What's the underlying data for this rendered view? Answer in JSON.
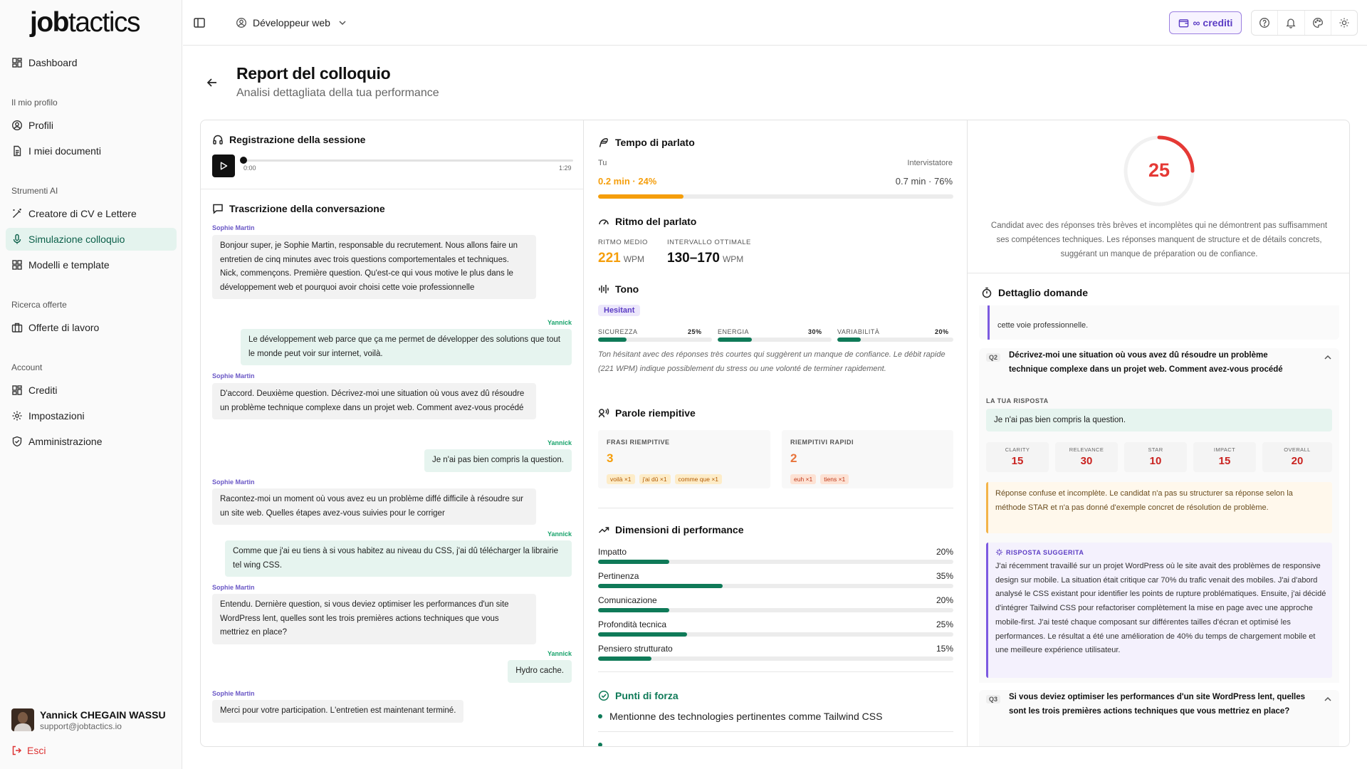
{
  "app": {
    "logo_bold": "job",
    "logo_rest": "tactics"
  },
  "sidebar": {
    "dashboard": "Dashboard",
    "section_profile": "Il mio profilo",
    "profiles": "Profili",
    "documents": "I miei documenti",
    "section_ai": "Strumenti AI",
    "cv_creator": "Creatore di CV e Lettere",
    "interview_sim": "Simulazione colloquio",
    "templates": "Modelli e template",
    "section_jobs": "Ricerca offerte",
    "job_offers": "Offerte di lavoro",
    "section_account": "Account",
    "credits": "Crediti",
    "settings": "Impostazioni",
    "admin": "Amministrazione",
    "user_name": "Yannick CHEGAIN WASSU",
    "user_email": "support@jobtactics.io",
    "logout": "Esci"
  },
  "topbar": {
    "role": "Développeur web",
    "credits": "∞ crediti"
  },
  "header": {
    "title": "Report del colloquio",
    "subtitle": "Analisi dettagliata della tua performance"
  },
  "recording": {
    "title": "Registrazione della sessione",
    "current_time": "0:00",
    "duration": "1:29",
    "progress": 0.0
  },
  "transcript": {
    "title": "Trascrizione della conversazione",
    "messages": [
      {
        "speaker": "Sophie Martin",
        "text": "Bonjour super, je Sophie Martin, responsable du recrutement. Nous allons faire un entretien de cinq minutes avec trois questions comportementales et techniques. Nick, commençons. Première question. Qu'est-ce qui vous motive le plus dans le développement web et pourquoi avoir choisi cette voie professionnelle"
      },
      {
        "speaker": "Yannick",
        "text": "Le développement web parce que ça me permet de développer des solutions que tout le monde peut voir sur internet, voilà."
      },
      {
        "speaker": "Sophie Martin",
        "text": "D'accord. Deuxième question. Décrivez-moi une situation où vous avez dû résoudre un problème technique complexe dans un projet web. Comment avez-vous procédé"
      },
      {
        "speaker": "Yannick",
        "text": "Je n'ai pas bien compris la question."
      },
      {
        "speaker": "Sophie Martin",
        "text": "Racontez-moi un moment où vous avez eu un problème diffé difficile à résoudre sur un site web. Quelles étapes avez-vous suivies pour le corriger"
      },
      {
        "speaker": "Yannick",
        "text": "Comme que j'ai eu tiens à si vous habitez au niveau du CSS, j'ai dû télécharger la librairie tel wing CSS."
      },
      {
        "speaker": "Sophie Martin",
        "text": "Entendu. Dernière question, si vous deviez optimiser les performances d'un site WordPress lent, quelles sont les trois premières actions techniques que vous mettriez en place?"
      },
      {
        "speaker": "Yannick",
        "text": "Hydro cache."
      },
      {
        "speaker": "Sophie Martin",
        "text": "Merci pour votre participation. L'entretien est maintenant terminé."
      }
    ]
  },
  "talk_time": {
    "title": "Tempo di parlato",
    "you_label": "Tu",
    "interviewer_label": "Intervistatore",
    "you_value": "0.2 min · 24%",
    "interviewer_value": "0.7 min · 76%",
    "you_pct": 24
  },
  "pace": {
    "title": "Ritmo del parlato",
    "avg_label": "RITMO MEDIO",
    "avg_value": "221",
    "optimal_label": "INTERVALLO OTTIMALE",
    "optimal_value": "130–170",
    "unit": "WPM"
  },
  "tone": {
    "title": "Tono",
    "badge": "Hesitant",
    "metrics": [
      {
        "label": "SICUREZZA",
        "value": "25%",
        "pct": 25
      },
      {
        "label": "ENERGIA",
        "value": "30%",
        "pct": 30
      },
      {
        "label": "VARIABILITÀ",
        "value": "20%",
        "pct": 20
      }
    ],
    "note": "Ton hésitant avec des réponses très courtes qui suggèrent un manque de confiance. Le débit rapide (221 WPM) indique possiblement du stress ou une volonté de terminer rapidement."
  },
  "fillers": {
    "title": "Parole riempitive",
    "phrases_label": "FRASI RIEMPITIVE",
    "phrases_count": "3",
    "phrases": [
      "voilà ×1",
      "j'ai dû ×1",
      "comme que ×1"
    ],
    "quick_label": "RIEMPITIVI RAPIDI",
    "quick_count": "2",
    "quick": [
      "euh ×1",
      "tiens ×1"
    ]
  },
  "dimensions": {
    "title": "Dimensioni di performance",
    "items": [
      {
        "name": "Impatto",
        "value": "20%",
        "pct": 20
      },
      {
        "name": "Pertinenza",
        "value": "35%",
        "pct": 35
      },
      {
        "name": "Comunicazione",
        "value": "20%",
        "pct": 20
      },
      {
        "name": "Profondità tecnica",
        "value": "25%",
        "pct": 25
      },
      {
        "name": "Pensiero strutturato",
        "value": "15%",
        "pct": 15
      }
    ]
  },
  "strengths": {
    "title": "Punti di forza",
    "items": [
      "Mentionne des technologies pertinentes comme Tailwind CSS"
    ]
  },
  "score": {
    "value": "25",
    "pct": 25,
    "summary": "Candidat avec des réponses très brèves et incomplètes qui ne démontrent pas suffisamment ses compétences techniques. Les réponses manquent de structure et de détails concrets, suggérant un manque de préparation ou de confiance."
  },
  "details": {
    "title": "Dettaglio domande",
    "prev_tail": "cette voie professionnelle.",
    "q2": {
      "num": "Q2",
      "text": "Décrivez-moi une situation où vous avez dû résoudre un problème technique complexe dans un projet web. Comment avez-vous procédé",
      "answer_label": "LA TUA RISPOSTA",
      "answer": "Je n'ai pas bien compris la question.",
      "scores": [
        {
          "k": "CLARITY",
          "v": "15"
        },
        {
          "k": "RELEVANCE",
          "v": "30"
        },
        {
          "k": "STAR",
          "v": "10"
        },
        {
          "k": "IMPACT",
          "v": "15"
        },
        {
          "k": "OVERALL",
          "v": "20"
        }
      ],
      "feedback": "Réponse confuse et incomplète. Le candidat n'a pas su structurer sa réponse selon la méthode STAR et n'a pas donné d'exemple concret de résolution de problème.",
      "suggested_label": "RISPOSTA SUGGERITA",
      "suggested": "J'ai récemment travaillé sur un projet WordPress où le site avait des problèmes de responsive design sur mobile. La situation était critique car 70% du trafic venait des mobiles. J'ai d'abord analysé le CSS existant pour identifier les points de rupture problématiques. Ensuite, j'ai décidé d'intégrer Tailwind CSS pour refactoriser complètement la mise en page avec une approche mobile-first. J'ai testé chaque composant sur différentes tailles d'écran et optimisé les performances. Le résultat a été une amélioration de 40% du temps de chargement mobile et une meilleure expérience utilisateur."
    },
    "q3": {
      "num": "Q3",
      "text": "Si vous deviez optimiser les performances d'un site WordPress lent, quelles sont les trois premières actions techniques que vous mettriez en place?"
    }
  },
  "colors": {
    "accent": "#0f7a58",
    "danger": "#e53935",
    "orange": "#f59e0b",
    "purple": "#5b3cc4"
  }
}
